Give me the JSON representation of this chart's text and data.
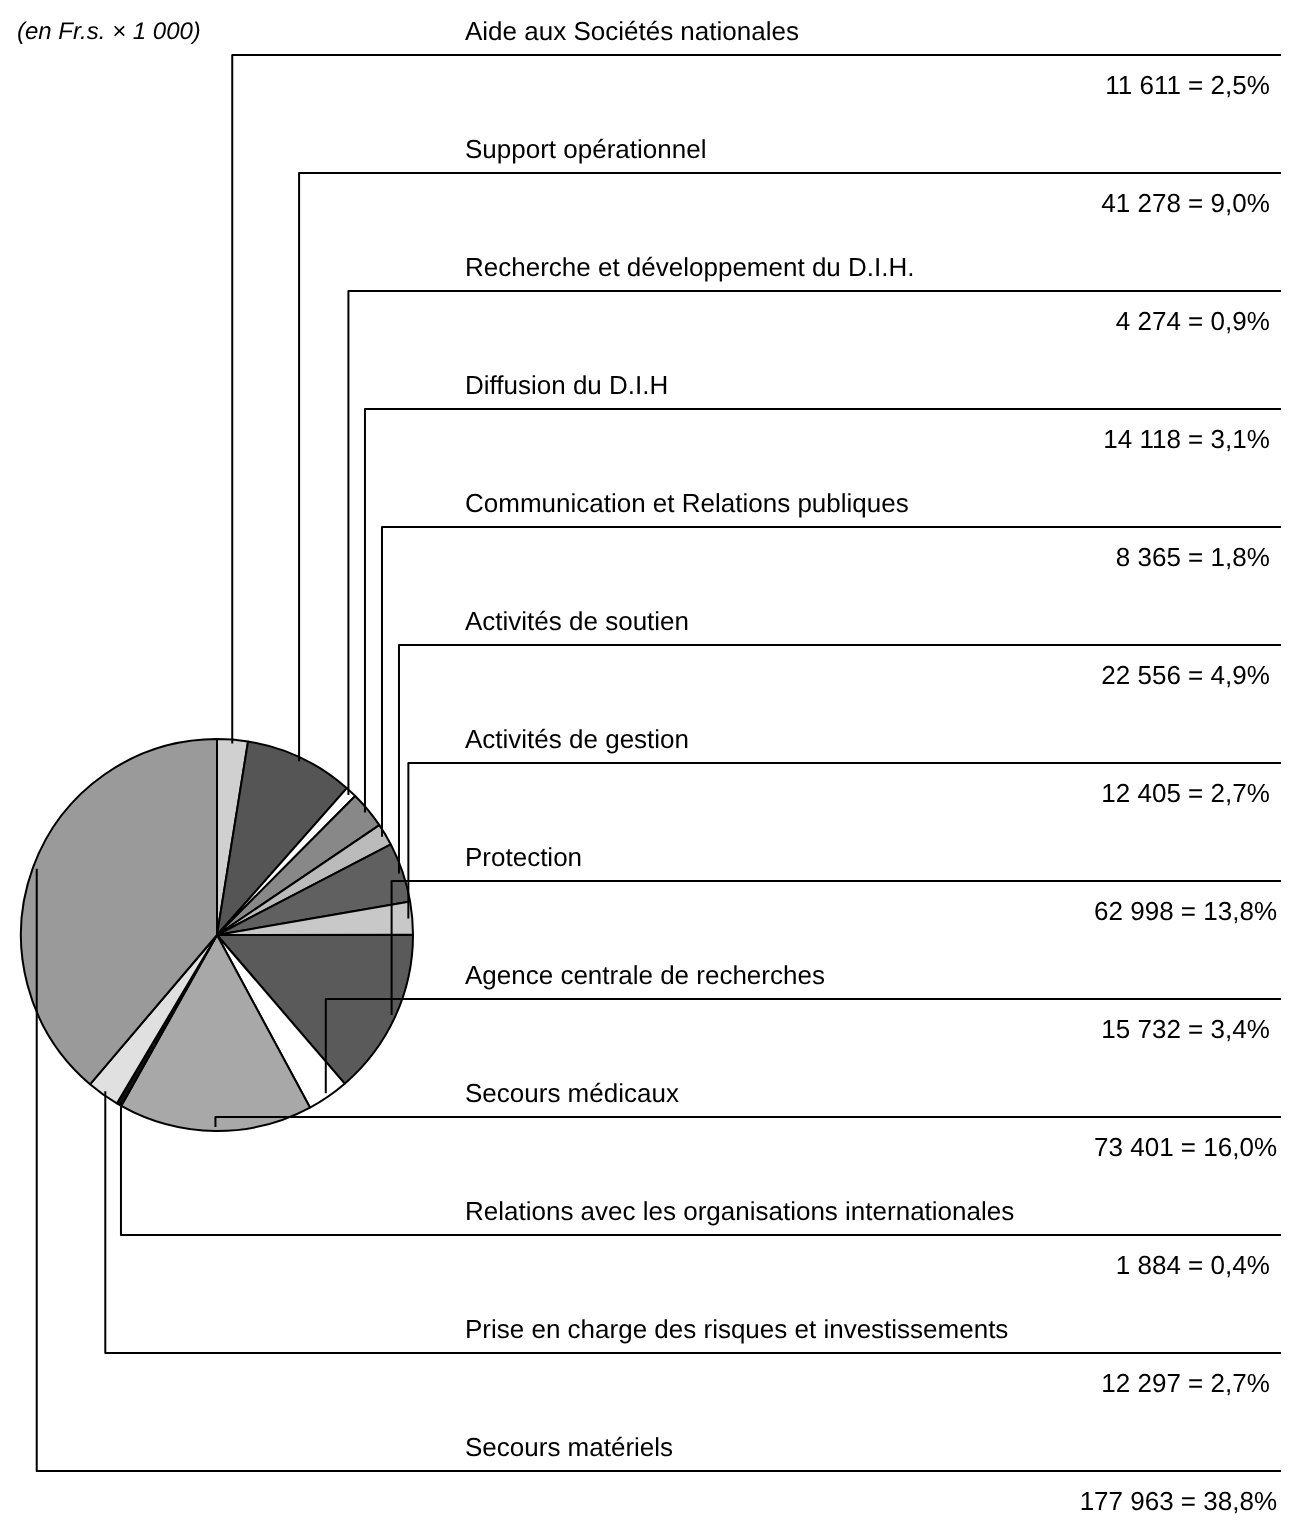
{
  "chart_data": {
    "type": "pie",
    "annotations": [
      "(en Fr.s. × 1 000)"
    ],
    "categories": [
      "Aide aux Sociétés nationales",
      "Support opérationnel",
      "Recherche et développement du D.I.H.",
      "Diffusion du D.I.H",
      "Communication et Relations publiques",
      "Activités de soutien",
      "Activités de gestion",
      "Protection",
      "Agence centrale de recherches",
      "Secours médicaux",
      "Relations avec les organisations internationales",
      "Prise en charge des risques et investissements",
      "Secours matériels"
    ],
    "values": [
      11611,
      41278,
      4274,
      14118,
      8365,
      22556,
      12405,
      62998,
      15732,
      73401,
      1884,
      12297,
      177963
    ],
    "value_labels": [
      "11 611 =  2,5%",
      "41 278 =  9,0%",
      "4 274 =  0,9%",
      "14 118 =  3,1%",
      "8 365 =  1,8%",
      "22 556 =  4,9%",
      "12 405 =  2,7%",
      "62 998 = 13,8%",
      "15 732 =  3,4%",
      "73 401 = 16,0%",
      "1 884 =  0,4%",
      "12 297 =  2,7%",
      "177 963 = 38,8%"
    ],
    "colors": [
      "#d0d0d0",
      "#555555",
      "#ffffff",
      "#888888",
      "#bbbbbb",
      "#606060",
      "#c8c8c8",
      "#5a5a5a",
      "#ffffff",
      "#a8a8a8",
      "#111111",
      "#e0e0e0",
      "#9a9a9a"
    ]
  }
}
